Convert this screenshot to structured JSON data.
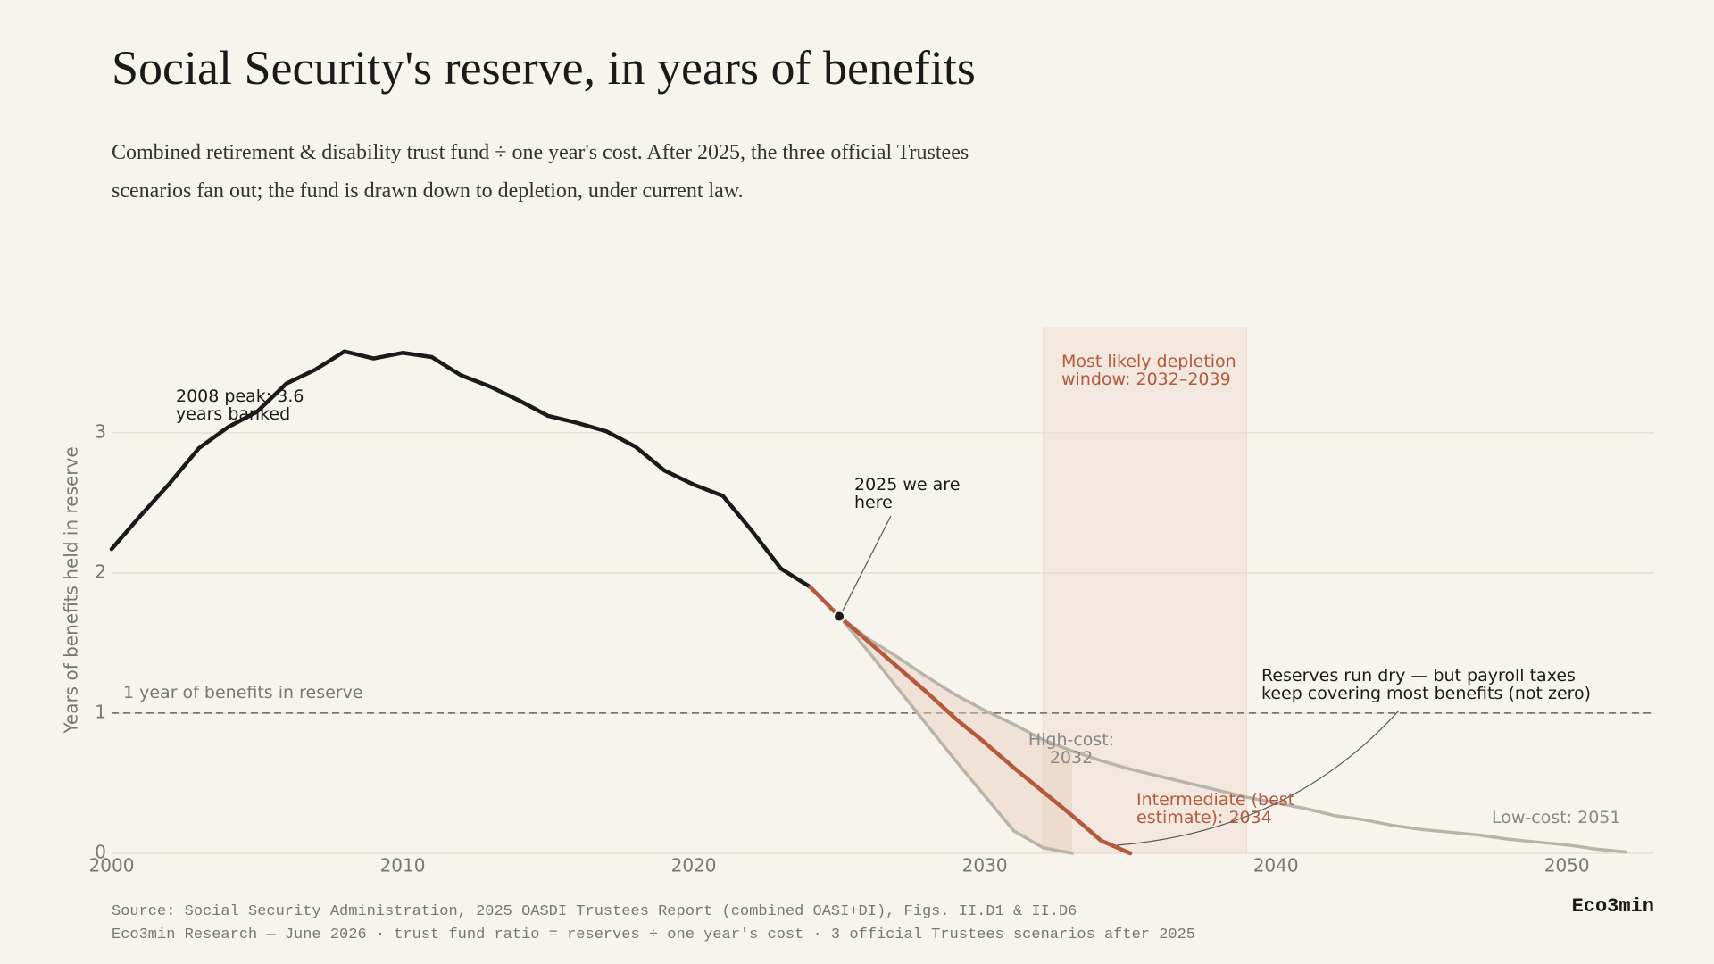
{
  "chart_data": {
    "type": "line",
    "title": "Social Security's reserve, in years of benefits",
    "subtitle": "Combined retirement & disability trust fund ÷ one year's cost. After 2025, the three official Trustees scenarios fan out; the fund is drawn down to depletion, under current law.",
    "y_label": "Years of benefits held in reserve",
    "xlim": [
      2000,
      2053
    ],
    "ylim": [
      0,
      3.75
    ],
    "xticks": [
      2000,
      2010,
      2020,
      2030,
      2040,
      2050
    ],
    "yticks": [
      0,
      1,
      2,
      3
    ],
    "grid": true,
    "series": [
      {
        "color": "#1a1a1a",
        "x": [
          2000,
          2001,
          2002,
          2003,
          2004,
          2005,
          2006,
          2007,
          2008,
          2009,
          2010,
          2011,
          2012,
          2013,
          2014,
          2015,
          2016,
          2017,
          2018,
          2019,
          2020,
          2021,
          2022,
          2023,
          2024
        ],
        "values": [
          2.17,
          2.41,
          2.64,
          2.89,
          3.04,
          3.15,
          3.35,
          3.45,
          3.58,
          3.53,
          3.57,
          3.54,
          3.41,
          3.33,
          3.23,
          3.12,
          3.07,
          3.01,
          2.9,
          2.73,
          2.63,
          2.55,
          2.3,
          2.03,
          1.9
        ]
      },
      {
        "name": "Intermediate (best estimate): 2034",
        "color": "#b5593c",
        "x": [
          2024,
          2025,
          2026,
          2027,
          2028,
          2029,
          2030,
          2031,
          2032,
          2033,
          2034,
          2035
        ],
        "values": [
          1.9,
          1.69,
          1.51,
          1.33,
          1.15,
          0.96,
          0.79,
          0.61,
          0.44,
          0.27,
          0.09,
          0
        ]
      },
      {
        "name": "High-cost: 2032",
        "color": "#b9b4ab",
        "x": [
          2025,
          2026,
          2027,
          2028,
          2029,
          2030,
          2031,
          2032,
          2033
        ],
        "values": [
          1.69,
          1.44,
          1.18,
          0.92,
          0.66,
          0.41,
          0.16,
          0.04,
          0
        ]
      },
      {
        "name": "Low-cost: 2051",
        "color": "#b9b4ab",
        "x": [
          2025,
          2026,
          2027,
          2028,
          2029,
          2030,
          2031,
          2032,
          2033,
          2034,
          2035,
          2036,
          2037,
          2038,
          2039,
          2040,
          2041,
          2042,
          2043,
          2044,
          2045,
          2046,
          2047,
          2048,
          2049,
          2050,
          2051,
          2052
        ],
        "values": [
          1.69,
          1.53,
          1.4,
          1.26,
          1.13,
          1.02,
          0.92,
          0.81,
          0.73,
          0.66,
          0.6,
          0.55,
          0.5,
          0.45,
          0.4,
          0.36,
          0.32,
          0.27,
          0.24,
          0.2,
          0.17,
          0.15,
          0.13,
          0.1,
          0.08,
          0.06,
          0.03,
          0.01
        ]
      }
    ],
    "reference_line": {
      "value": 1,
      "label": "1 year of benefits in reserve"
    },
    "depletion_window": {
      "range": [
        2032,
        2039
      ],
      "label": "Most likely depletion window: 2032–2039"
    },
    "annotations": [
      {
        "text": "2008 peak: 3.6 years banked"
      },
      {
        "text": "2025 we are here"
      },
      {
        "text": "Reserves run dry — but payroll taxes keep covering most benefits (not zero)"
      }
    ],
    "source": [
      "Source: Social Security Administration, 2025 OASDI Trustees Report (combined OASI+DI), Figs. II.D1 & II.D6",
      "Eco3min Research — June 2026 · trust fund ratio = reserves ÷ one year's cost · 3 official Trustees scenarios after 2025"
    ],
    "brand": "Eco3min"
  }
}
